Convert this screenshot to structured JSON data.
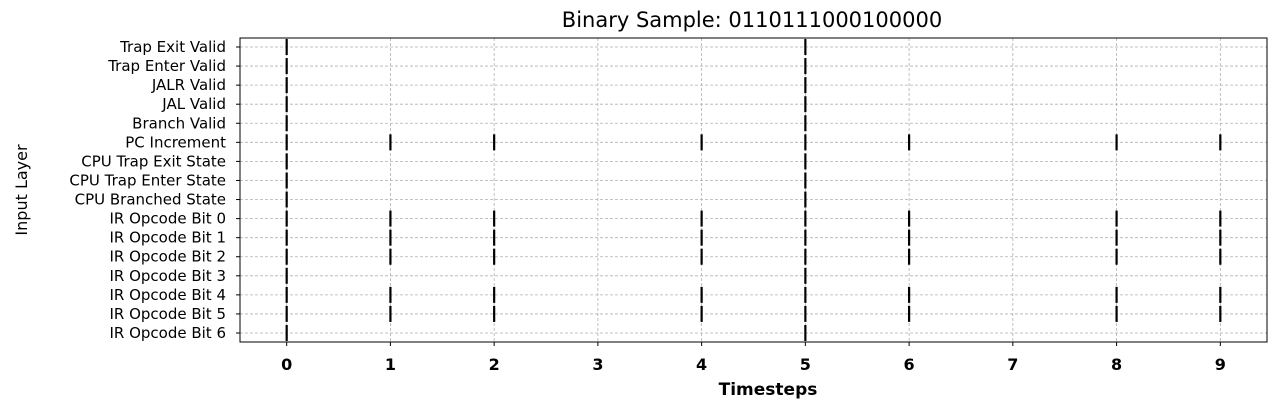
{
  "chart_data": {
    "type": "eventplot",
    "title": "Binary Sample: 0110111000100000",
    "xlabel": "Timesteps",
    "ylabel": "Input Layer",
    "xlim": [
      -0.45,
      9.45
    ],
    "x_ticks": [
      0,
      1,
      2,
      3,
      4,
      5,
      6,
      7,
      8,
      9
    ],
    "grid": true,
    "categories": [
      "Trap Exit Valid",
      "Trap Enter Valid",
      "JALR Valid",
      "JAL Valid",
      "Branch Valid",
      "PC Increment",
      "CPU Trap Exit State",
      "CPU Trap Enter State",
      "CPU Branched State",
      "IR Opcode Bit 0",
      "IR Opcode Bit 1",
      "IR Opcode Bit 2",
      "IR Opcode Bit 3",
      "IR Opcode Bit 4",
      "IR Opcode Bit 5",
      "IR Opcode Bit 6"
    ],
    "events": [
      [
        0,
        5
      ],
      [
        0,
        5
      ],
      [
        0,
        5
      ],
      [
        0,
        5
      ],
      [
        0,
        5
      ],
      [
        0,
        1,
        2,
        4,
        5,
        6,
        8,
        9
      ],
      [
        0,
        5
      ],
      [
        0,
        5
      ],
      [
        0,
        5
      ],
      [
        0,
        1,
        2,
        4,
        5,
        6,
        8,
        9
      ],
      [
        0,
        1,
        2,
        4,
        5,
        6,
        8,
        9
      ],
      [
        0,
        1,
        2,
        4,
        5,
        6,
        8,
        9
      ],
      [
        0,
        5
      ],
      [
        0,
        1,
        2,
        4,
        5,
        6,
        8,
        9
      ],
      [
        0,
        1,
        2,
        4,
        5,
        6,
        8,
        9
      ],
      [
        0,
        5
      ]
    ],
    "event_color": "#000000"
  }
}
